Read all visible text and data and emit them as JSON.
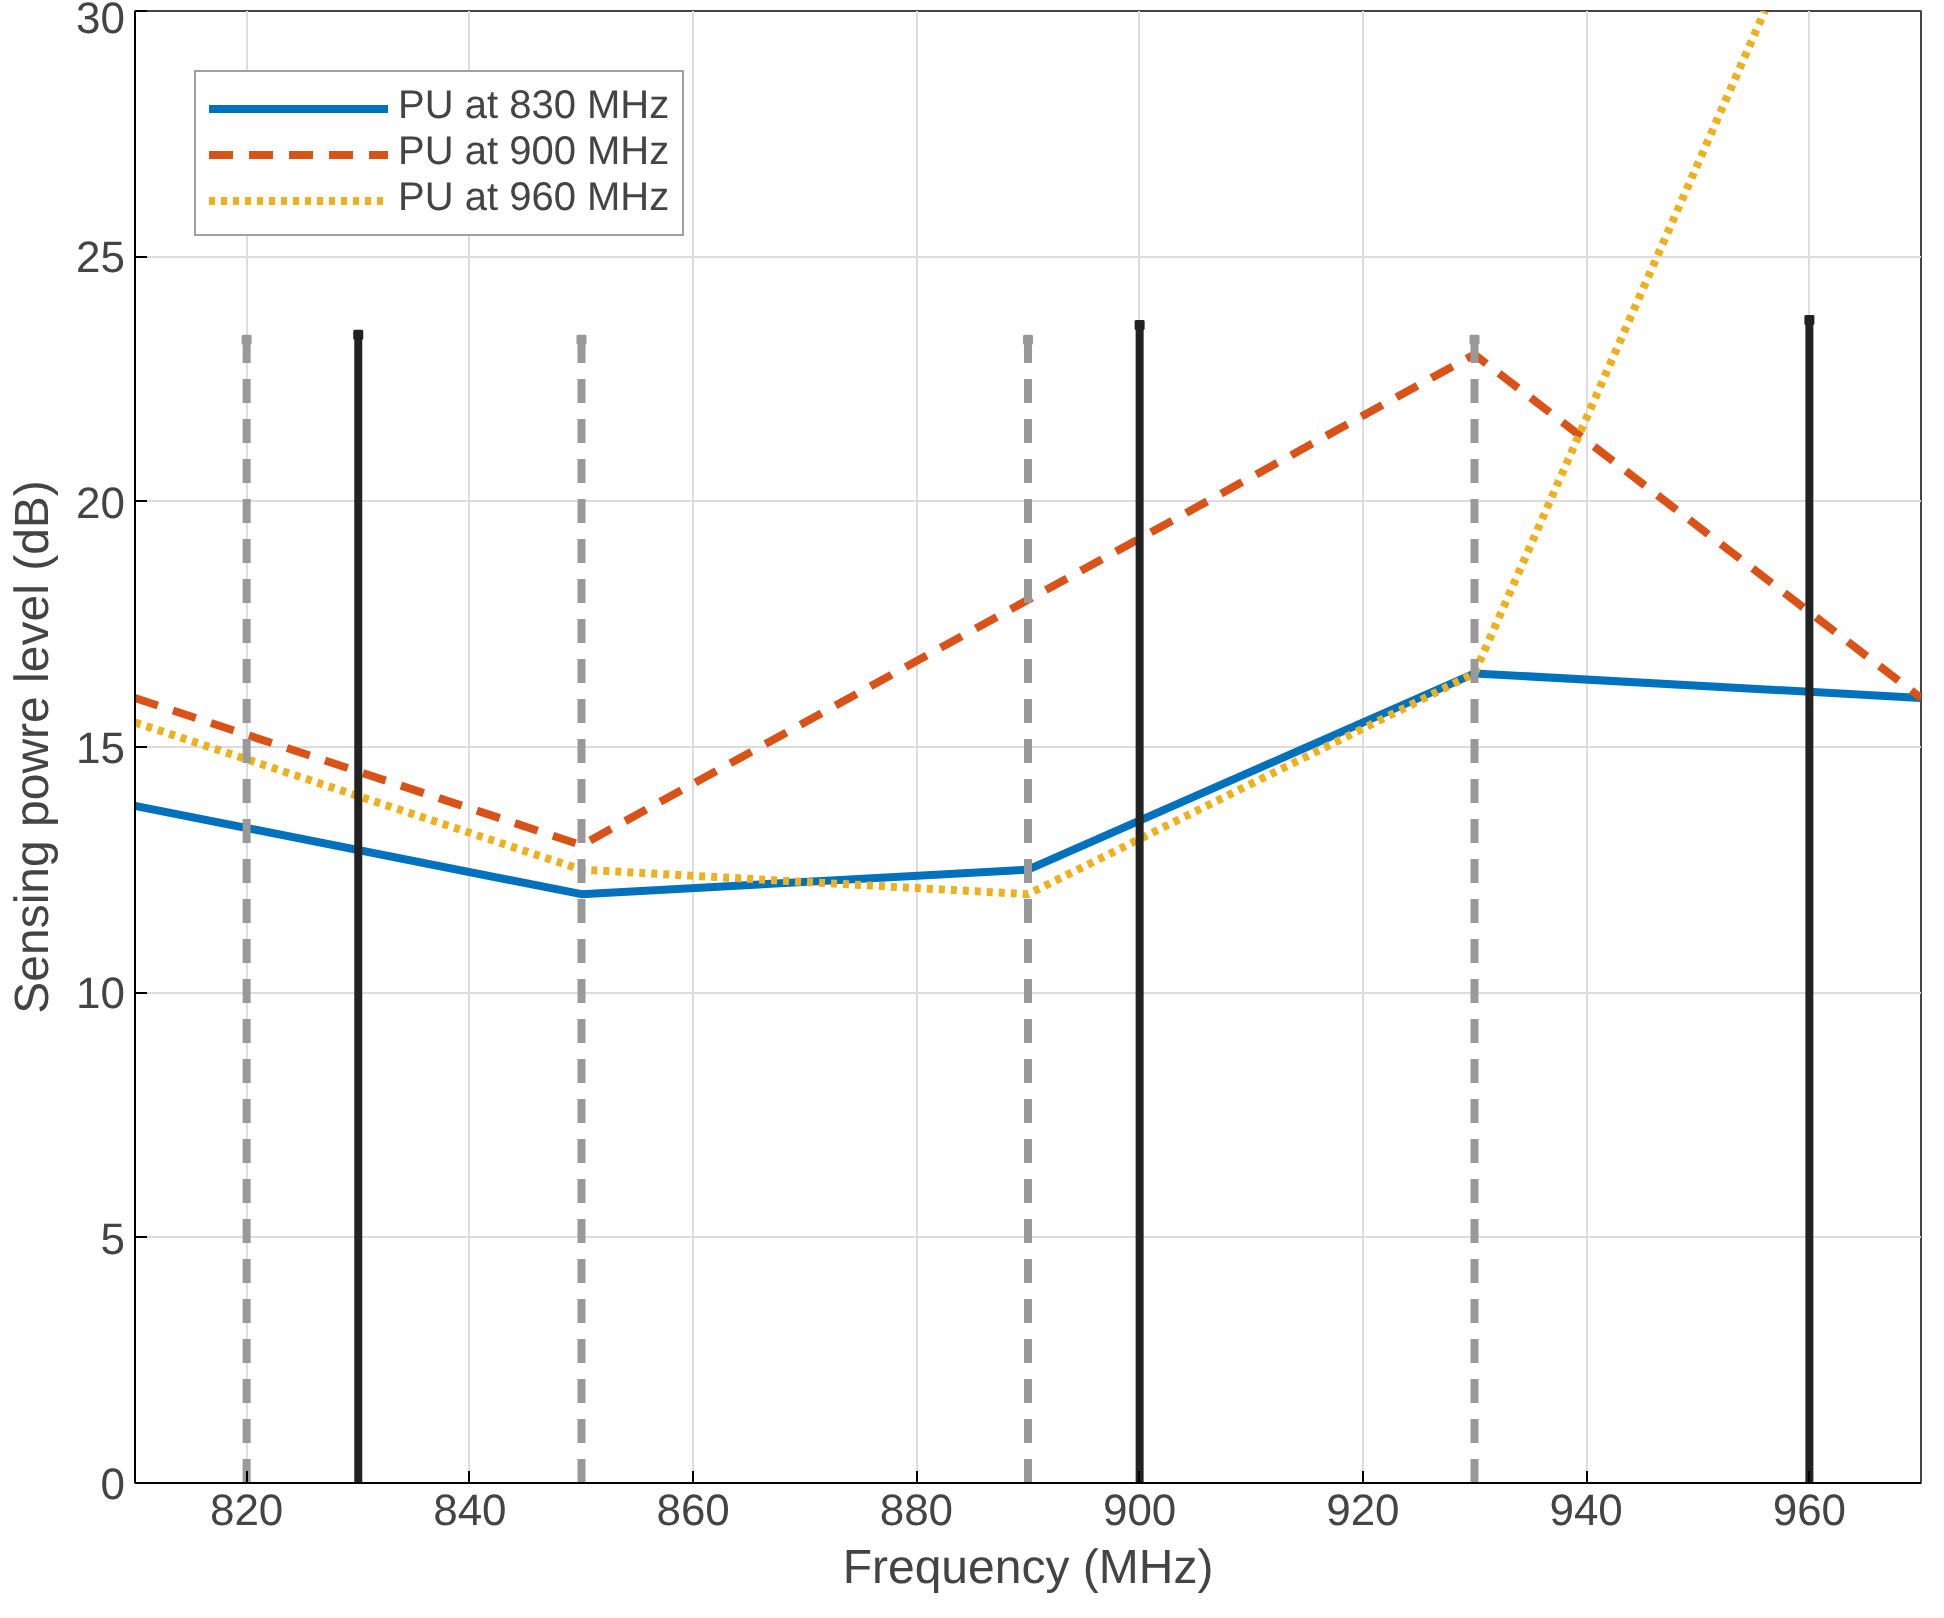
{
  "chart_data": {
    "type": "line",
    "xlabel": "Frequency (MHz)",
    "ylabel": "Sensing powre level (dB)",
    "xlim": [
      810,
      970
    ],
    "xticks": [
      820,
      840,
      860,
      880,
      900,
      920,
      940,
      960
    ],
    "ylim": [
      0,
      30
    ],
    "yticks": [
      0,
      5,
      10,
      15,
      20,
      25,
      30
    ],
    "grid": true,
    "legend": "top left",
    "series": [
      {
        "name": "PU at 830 MHz",
        "color": "#0072bd",
        "line_style": "solid",
        "x": [
          810,
          850,
          890,
          930,
          970
        ],
        "values": [
          13.8,
          12.0,
          12.5,
          16.5,
          16.0
        ]
      },
      {
        "name": "PU at 900 MHz",
        "color": "#d95319",
        "line_style": "dashed",
        "x": [
          810,
          850,
          890,
          930,
          970
        ],
        "values": [
          16.0,
          13.0,
          18.0,
          23.0,
          16.0
        ]
      },
      {
        "name": "PU at 960 MHz",
        "color": "#edb120",
        "line_style": "dotted",
        "x": [
          810,
          850,
          890,
          930,
          956
        ],
        "values": [
          15.5,
          12.5,
          12.0,
          16.5,
          30.0
        ]
      },
      {
        "type": "lollipop",
        "marker": "square",
        "color": "#999999",
        "line_style": "dashed",
        "x": [
          820,
          850,
          890,
          930
        ],
        "values": [
          23.3,
          23.3,
          23.3,
          23.3
        ]
      },
      {
        "type": "lollipop",
        "marker": "square",
        "color": "#222222",
        "line_style": "solid",
        "x": [
          830,
          900,
          960
        ],
        "values": [
          23.4,
          23.6,
          23.7
        ]
      }
    ]
  }
}
